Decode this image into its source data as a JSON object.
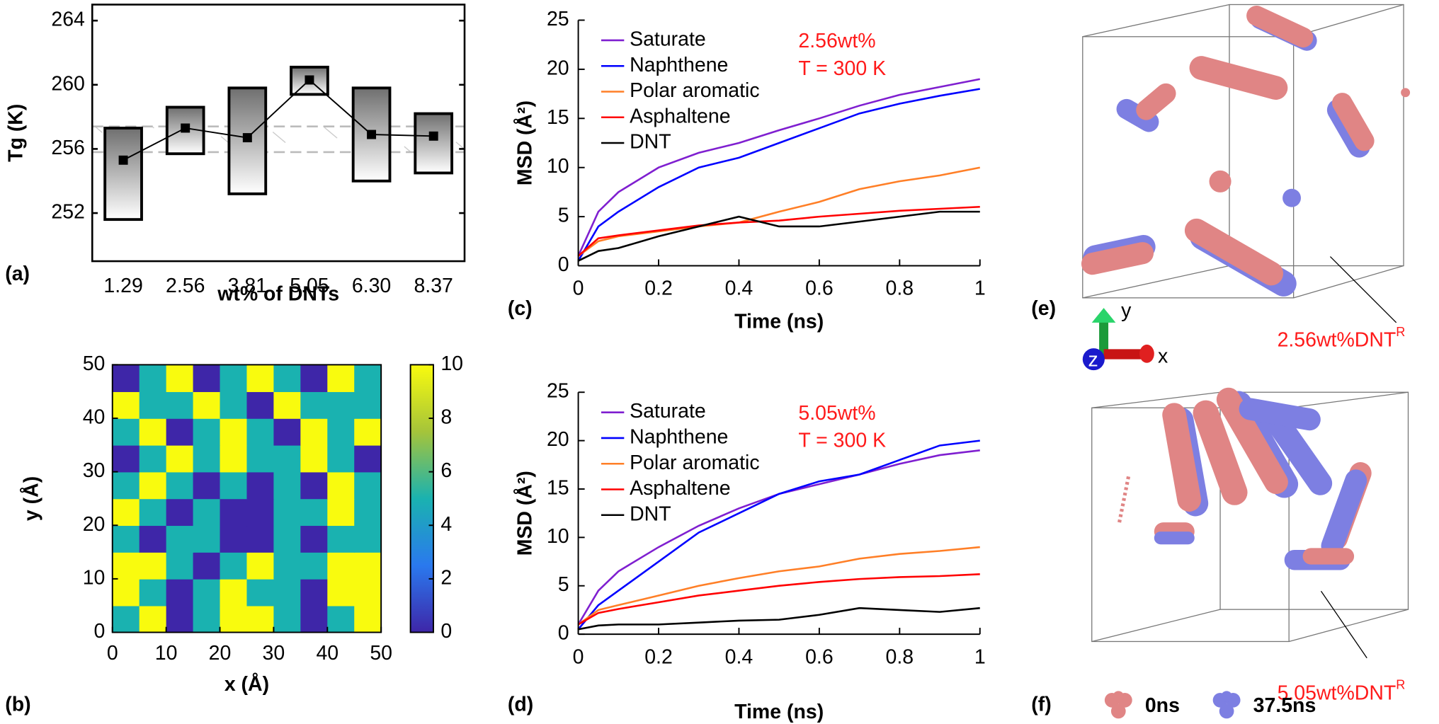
{
  "chart_data": [
    {
      "type": "range-bar",
      "label": "(a)",
      "xlabel": "wt% of DNTs",
      "ylabel": "Tg (K)",
      "categories": [
        "1.29",
        "2.56",
        "3.81",
        "5.05",
        "6.30",
        "8.37"
      ],
      "values": [
        255.3,
        257.3,
        256.7,
        260.3,
        256.9,
        256.8
      ],
      "lows": [
        251.6,
        255.7,
        253.2,
        259.4,
        254.0,
        254.5
      ],
      "highs": [
        257.3,
        258.6,
        259.8,
        261.1,
        259.8,
        258.2
      ],
      "band": [
        255.8,
        257.4
      ],
      "color": "#000000",
      "ylim": [
        249,
        265
      ],
      "yticks": [
        252,
        256,
        260,
        264
      ]
    },
    {
      "type": "contour",
      "label": "(b)",
      "xlabel": "x (Å)",
      "ylabel": "y (Å)",
      "xlim": [
        0,
        50
      ],
      "ylim": [
        0,
        50
      ],
      "xticks": [
        0,
        10,
        20,
        30,
        40,
        50
      ],
      "yticks": [
        0,
        10,
        20,
        30,
        40,
        50
      ],
      "z": [
        [
          5,
          10,
          0,
          5,
          10,
          10,
          5,
          0,
          5,
          10
        ],
        [
          10,
          5,
          0,
          5,
          10,
          5,
          5,
          0,
          10,
          10
        ],
        [
          10,
          10,
          5,
          0,
          5,
          10,
          5,
          5,
          10,
          10
        ],
        [
          5,
          0,
          5,
          5,
          0,
          0,
          5,
          0,
          5,
          5
        ],
        [
          10,
          5,
          0,
          5,
          0,
          0,
          5,
          5,
          10,
          5
        ],
        [
          5,
          10,
          5,
          0,
          5,
          0,
          5,
          0,
          10,
          5
        ],
        [
          0,
          5,
          10,
          5,
          10,
          5,
          5,
          10,
          5,
          0
        ],
        [
          5,
          10,
          0,
          5,
          10,
          5,
          0,
          10,
          5,
          10
        ],
        [
          10,
          5,
          5,
          10,
          5,
          0,
          10,
          5,
          5,
          5
        ],
        [
          0,
          5,
          10,
          0,
          5,
          10,
          5,
          0,
          10,
          5
        ]
      ],
      "clim": [
        0,
        10
      ],
      "cticks": [
        0,
        2,
        4,
        6,
        8,
        10
      ],
      "colormap": [
        "#3e26a8",
        "#2a79ee",
        "#1ab2b0",
        "#a5c43a",
        "#f9fb0e"
      ]
    },
    {
      "type": "line",
      "label": "(c)",
      "xlabel": "Time (ns)",
      "ylabel": "MSD (Å²)",
      "annotations": [
        "2.56wt%",
        "T = 300 K"
      ],
      "x": [
        0,
        0.05,
        0.1,
        0.2,
        0.3,
        0.4,
        0.5,
        0.6,
        0.7,
        0.8,
        0.9,
        1
      ],
      "series": [
        {
          "name": "Saturate",
          "color": "#7f1fd0",
          "values": [
            1,
            5.5,
            7.5,
            10,
            11.5,
            12.5,
            13.8,
            15,
            16.3,
            17.4,
            18.2,
            19
          ]
        },
        {
          "name": "Naphthene",
          "color": "#0000ff",
          "values": [
            0.5,
            4,
            5.5,
            8,
            10,
            11,
            12.5,
            14,
            15.5,
            16.5,
            17.3,
            18
          ]
        },
        {
          "name": "Polar aromatic",
          "color": "#ff7f27",
          "values": [
            1,
            2.5,
            3,
            3.5,
            4,
            4.4,
            5.5,
            6.5,
            7.8,
            8.6,
            9.2,
            10
          ]
        },
        {
          "name": "Asphaltene",
          "color": "#ff0000",
          "values": [
            1,
            2.8,
            3.1,
            3.6,
            4.1,
            4.4,
            4.6,
            5,
            5.3,
            5.6,
            5.8,
            6
          ]
        },
        {
          "name": "DNT",
          "color": "#000000",
          "values": [
            0.5,
            1.5,
            1.8,
            3,
            4,
            5,
            4,
            4,
            4.5,
            5,
            5.5,
            5.5
          ]
        }
      ],
      "xlim": [
        0,
        1
      ],
      "ylim": [
        0,
        25
      ],
      "xticks": [
        0,
        0.2,
        0.4,
        0.6,
        0.8,
        1
      ],
      "yticks": [
        0,
        5,
        10,
        15,
        20,
        25
      ]
    },
    {
      "type": "line",
      "label": "(d)",
      "xlabel": "Time (ns)",
      "ylabel": "MSD (Å²)",
      "annotations": [
        "5.05wt%",
        "T = 300 K"
      ],
      "x": [
        0,
        0.05,
        0.1,
        0.2,
        0.3,
        0.4,
        0.5,
        0.6,
        0.7,
        0.8,
        0.9,
        1
      ],
      "series": [
        {
          "name": "Saturate",
          "color": "#7f1fd0",
          "values": [
            1,
            4.5,
            6.5,
            9,
            11.2,
            13,
            14.5,
            15.5,
            16.5,
            17.6,
            18.5,
            19
          ]
        },
        {
          "name": "Naphthene",
          "color": "#0000ff",
          "values": [
            0.5,
            3,
            4.5,
            7.5,
            10.5,
            12.5,
            14.5,
            15.8,
            16.5,
            18,
            19.5,
            20
          ]
        },
        {
          "name": "Polar aromatic",
          "color": "#ff7f27",
          "values": [
            1,
            2.5,
            3,
            4,
            5,
            5.8,
            6.5,
            7,
            7.8,
            8.3,
            8.6,
            9
          ]
        },
        {
          "name": "Asphaltene",
          "color": "#ff0000",
          "values": [
            1,
            2.2,
            2.6,
            3.3,
            4,
            4.5,
            5,
            5.4,
            5.7,
            5.9,
            6,
            6.2
          ]
        },
        {
          "name": "DNT",
          "color": "#000000",
          "values": [
            0.5,
            0.9,
            1,
            1,
            1.2,
            1.4,
            1.5,
            2,
            2.7,
            2.5,
            2.3,
            2.7
          ]
        }
      ],
      "xlim": [
        0,
        1
      ],
      "ylim": [
        0,
        25
      ],
      "xticks": [
        0,
        0.2,
        0.4,
        0.6,
        0.8,
        1
      ],
      "yticks": [
        0,
        5,
        10,
        15,
        20,
        25
      ]
    }
  ],
  "renderings": [
    {
      "label": "(e)",
      "annotation": "2.56wt%DNT",
      "superscript": "R"
    },
    {
      "label": "(f)",
      "annotation": "5.05wt%DNT",
      "superscript": "R"
    }
  ],
  "axes_triad": {
    "x": "x",
    "y": "y",
    "z": "z"
  },
  "legend": [
    "0ns",
    "37.5ns"
  ]
}
